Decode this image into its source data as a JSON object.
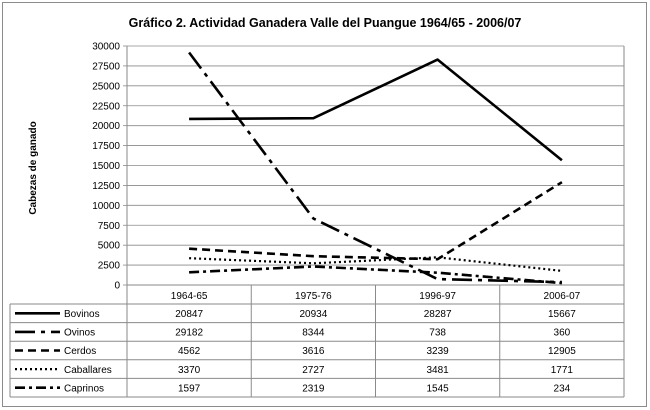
{
  "chart_data": {
    "type": "line",
    "title": "Gráfico 2. Actividad Ganadera Valle del Puangue 1964/65 - 2006/07",
    "xlabel": "",
    "ylabel": "Cabezas de ganado",
    "ylim": [
      0,
      30000
    ],
    "yticks": [
      "0",
      "2500",
      "5000",
      "7500",
      "10000",
      "12500",
      "15000",
      "17500",
      "20000",
      "22500",
      "25000",
      "27500",
      "30000"
    ],
    "categories": [
      "1964-65",
      "1975-76",
      "1996-97",
      "2006-07"
    ],
    "grid": true,
    "legend": "data-table",
    "series": [
      {
        "name": "Bovinos",
        "dash": "",
        "width": 2.6,
        "values": [
          20847,
          20934,
          28287,
          15667
        ],
        "labels": [
          "20847",
          "20934",
          "28287",
          "15667"
        ]
      },
      {
        "name": "Ovinos",
        "dash": "20 6 4 6",
        "width": 2.6,
        "values": [
          29182,
          8344,
          738,
          360
        ],
        "labels": [
          "29182",
          "8344",
          "738",
          "360"
        ]
      },
      {
        "name": "Cerdos",
        "dash": "8 5",
        "width": 2.6,
        "values": [
          4562,
          3616,
          3239,
          12905
        ],
        "labels": [
          "4562",
          "3616",
          "3239",
          "12905"
        ]
      },
      {
        "name": "Caballares",
        "dash": "2 3",
        "width": 2.2,
        "values": [
          3370,
          2727,
          3481,
          1771
        ],
        "labels": [
          "3370",
          "2727",
          "3481",
          "1771"
        ]
      },
      {
        "name": "Caprinos",
        "dash": "10 4 3 4",
        "width": 2.6,
        "values": [
          1597,
          2319,
          1545,
          234
        ],
        "labels": [
          "1597",
          "2319",
          "1545",
          "234"
        ]
      }
    ]
  }
}
